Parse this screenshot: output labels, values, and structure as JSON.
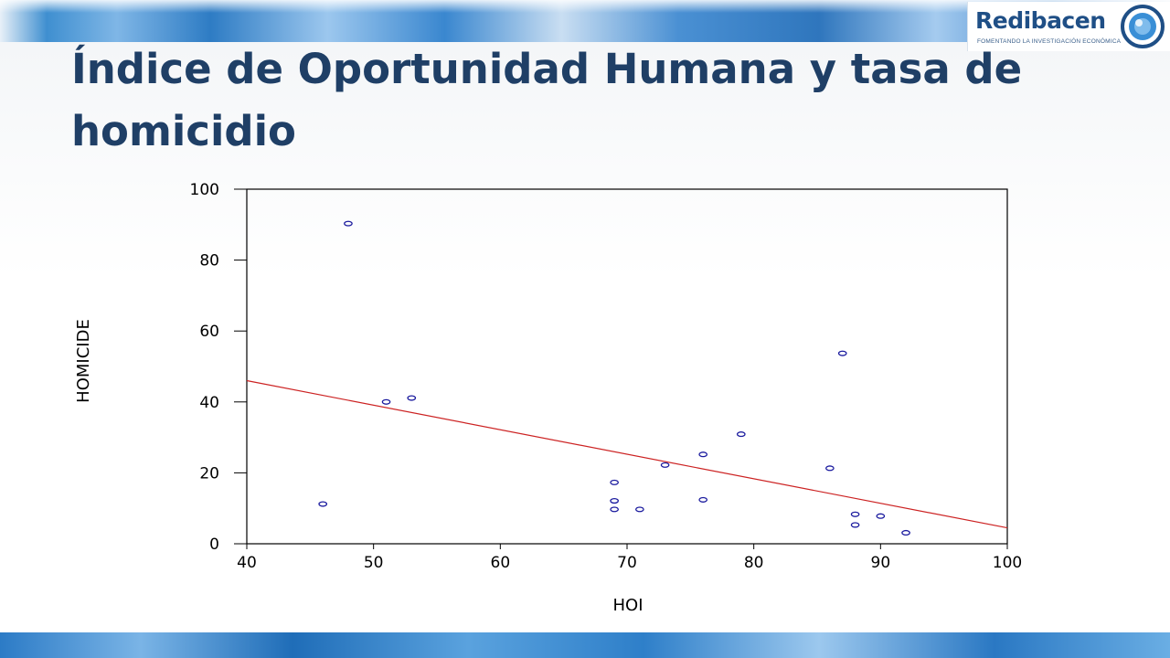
{
  "slide": {
    "title": "Índice de Oportunidad Humana y tasa de homicidio"
  },
  "logo": {
    "name": "Redibacen",
    "tagline": "FOMENTANDO LA INVESTIGACIÓN ECONÓMICA",
    "colors": {
      "primary": "#1f4f86",
      "accent": "#3a8fd6"
    }
  },
  "colors": {
    "title": "#1f3f66",
    "point": "#1a1a9e",
    "fit_line": "#cc2222",
    "band": "#2e7cc4"
  },
  "chart_data": {
    "type": "scatter",
    "title": "",
    "xlabel": "HOI",
    "ylabel": "HOMICIDE",
    "xlim": [
      40,
      100
    ],
    "ylim": [
      0,
      100
    ],
    "xticks": [
      "40",
      "50",
      "60",
      "70",
      "80",
      "90",
      "100"
    ],
    "yticks": [
      "0",
      "20",
      "40",
      "60",
      "80",
      "100"
    ],
    "grid": false,
    "legend": "none",
    "series": [
      {
        "x": [
          48,
          46,
          51,
          53,
          69,
          69,
          69,
          71,
          73,
          76,
          76,
          79,
          86,
          87,
          88,
          88,
          90,
          92
        ],
        "y": [
          90.3,
          11.2,
          40.0,
          41.1,
          17.3,
          12.1,
          9.7,
          9.7,
          22.2,
          25.2,
          12.4,
          30.9,
          21.3,
          53.7,
          8.3,
          5.3,
          7.8,
          3.1
        ]
      }
    ],
    "fit_line": {
      "x": [
        40,
        100
      ],
      "y": [
        46.0,
        4.5
      ]
    }
  }
}
